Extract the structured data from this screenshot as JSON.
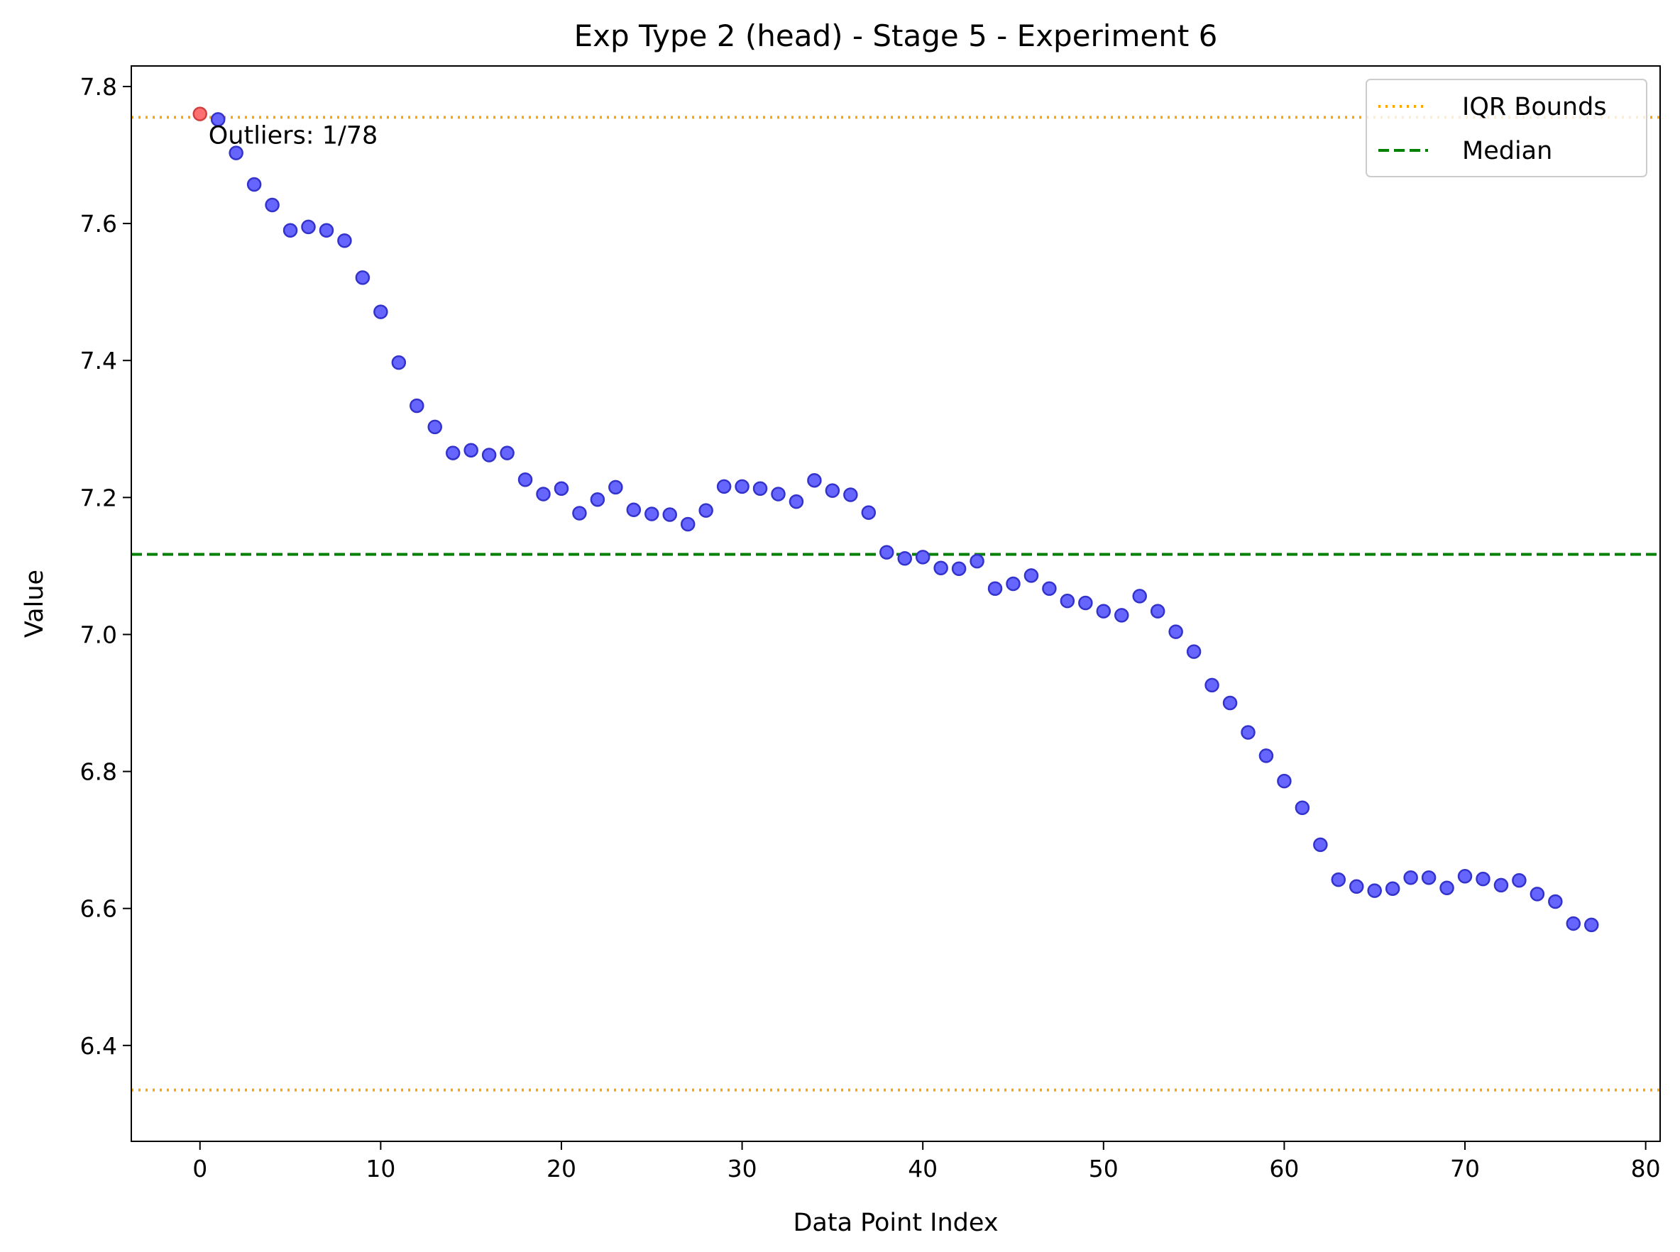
{
  "chart_data": {
    "type": "scatter",
    "title": "Exp Type 2 (head) - Stage 5 - Experiment 6",
    "xlabel": "Data Point Index",
    "ylabel": "Value",
    "xlim": [
      -3.8,
      80.8
    ],
    "ylim": [
      6.26,
      7.83
    ],
    "xticks": [
      "0",
      "10",
      "20",
      "30",
      "40",
      "50",
      "60",
      "70",
      "80"
    ],
    "yticks": [
      "6.4",
      "6.6",
      "6.8",
      "7.0",
      "7.2",
      "7.4",
      "7.6",
      "7.8"
    ],
    "grid": false,
    "legend_position": "top-right",
    "x": [
      0,
      1,
      2,
      3,
      4,
      5,
      6,
      7,
      8,
      9,
      10,
      11,
      12,
      13,
      14,
      15,
      16,
      17,
      18,
      19,
      20,
      21,
      22,
      23,
      24,
      25,
      26,
      27,
      28,
      29,
      30,
      31,
      32,
      33,
      34,
      35,
      36,
      37,
      38,
      39,
      40,
      41,
      42,
      43,
      44,
      45,
      46,
      47,
      48,
      49,
      50,
      51,
      52,
      53,
      54,
      55,
      56,
      57,
      58,
      59,
      60,
      61,
      62,
      63,
      64,
      65,
      66,
      67,
      68,
      69,
      70,
      71,
      72,
      73,
      74,
      75,
      76,
      77
    ],
    "values": [
      7.76,
      7.752,
      7.703,
      7.657,
      7.627,
      7.59,
      7.595,
      7.59,
      7.575,
      7.521,
      7.471,
      7.397,
      7.334,
      7.303,
      7.265,
      7.269,
      7.262,
      7.265,
      7.226,
      7.205,
      7.213,
      7.177,
      7.197,
      7.215,
      7.182,
      7.176,
      7.175,
      7.161,
      7.181,
      7.216,
      7.216,
      7.213,
      7.205,
      7.194,
      7.225,
      7.21,
      7.204,
      7.178,
      7.12,
      7.111,
      7.113,
      7.097,
      7.096,
      7.107,
      7.067,
      7.074,
      7.086,
      7.067,
      7.049,
      7.046,
      7.034,
      7.028,
      7.056,
      7.034,
      7.004,
      6.975,
      6.926,
      6.9,
      6.857,
      6.823,
      6.786,
      6.747,
      6.693,
      6.642,
      6.632,
      6.626,
      6.629,
      6.645,
      6.645,
      6.63,
      6.647,
      6.643,
      6.634,
      6.641,
      6.621,
      6.61,
      6.578,
      6.576
    ],
    "outlier_indices": [
      0
    ],
    "iqr_bounds": [
      6.335,
      7.755
    ],
    "median": 7.117,
    "legend": [
      "IQR Bounds",
      "Median"
    ],
    "annotation": "Outliers: 1/78",
    "colors": {
      "point": "#6666ff",
      "point_edge": "#3333cc",
      "outlier": "#ff7070",
      "outlier_edge": "#d04040",
      "iqr": "#ffa500",
      "median": "#008000"
    }
  }
}
